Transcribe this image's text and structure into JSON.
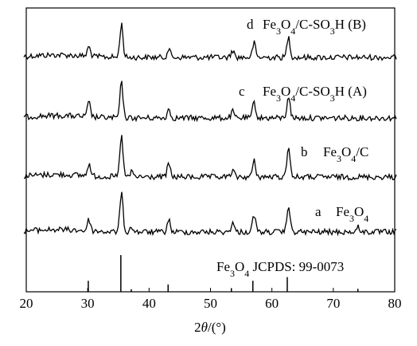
{
  "chart_data": {
    "type": "line",
    "xlabel": "2θ/(°)",
    "xlim": [
      20,
      80
    ],
    "xticks": [
      20,
      30,
      40,
      50,
      60,
      70,
      80
    ],
    "grid": false,
    "legend": "none",
    "series": [
      {
        "letter": "d",
        "label_html": "Fe<tspan baseline-shift=\"sub\" font-size=\"12\">3</tspan>O<tspan baseline-shift=\"sub\" font-size=\"12\">4</tspan>/C-SO<tspan baseline-shift=\"sub\" font-size=\"12\">3</tspan>H (B)",
        "peaks": [
          {
            "x": 30.2,
            "h": 12
          },
          {
            "x": 35.5,
            "h": 42
          },
          {
            "x": 43.2,
            "h": 11
          },
          {
            "x": 53.6,
            "h": 9
          },
          {
            "x": 57.1,
            "h": 18
          },
          {
            "x": 62.7,
            "h": 26
          }
        ]
      },
      {
        "letter": "c",
        "label_html": "Fe<tspan baseline-shift=\"sub\" font-size=\"12\">3</tspan>O<tspan baseline-shift=\"sub\" font-size=\"12\">4</tspan>/C-SO<tspan baseline-shift=\"sub\" font-size=\"12\">3</tspan>H (A)",
        "peaks": [
          {
            "x": 30.2,
            "h": 18
          },
          {
            "x": 35.5,
            "h": 44
          },
          {
            "x": 43.2,
            "h": 11
          },
          {
            "x": 53.6,
            "h": 8
          },
          {
            "x": 57.1,
            "h": 20
          },
          {
            "x": 62.7,
            "h": 28
          }
        ]
      },
      {
        "letter": "b",
        "label_html": "Fe<tspan baseline-shift=\"sub\" font-size=\"12\">3</tspan>O<tspan baseline-shift=\"sub\" font-size=\"12\">4</tspan>/C",
        "peaks": [
          {
            "x": 30.2,
            "h": 15
          },
          {
            "x": 35.5,
            "h": 52
          },
          {
            "x": 37.2,
            "h": 6
          },
          {
            "x": 43.2,
            "h": 17
          },
          {
            "x": 53.6,
            "h": 8
          },
          {
            "x": 57.1,
            "h": 20
          },
          {
            "x": 62.7,
            "h": 40
          }
        ]
      },
      {
        "letter": "a",
        "label_html": "Fe<tspan baseline-shift=\"sub\" font-size=\"12\">3</tspan>O<tspan baseline-shift=\"sub\" font-size=\"12\">4</tspan>",
        "peaks": [
          {
            "x": 30.2,
            "h": 14
          },
          {
            "x": 35.5,
            "h": 50
          },
          {
            "x": 37.2,
            "h": 6
          },
          {
            "x": 43.2,
            "h": 15
          },
          {
            "x": 53.6,
            "h": 12
          },
          {
            "x": 57.1,
            "h": 22
          },
          {
            "x": 62.7,
            "h": 34
          },
          {
            "x": 74.1,
            "h": 6
          }
        ]
      }
    ],
    "reference": {
      "label_html": "Fe<tspan baseline-shift=\"sub\" font-size=\"12\">3</tspan>O<tspan baseline-shift=\"sub\" font-size=\"12\">4</tspan>  JCPDS:  99-0073",
      "lines": [
        {
          "x": 30.1,
          "h": 0.3
        },
        {
          "x": 35.4,
          "h": 1.0
        },
        {
          "x": 37.1,
          "h": 0.07
        },
        {
          "x": 43.1,
          "h": 0.2
        },
        {
          "x": 53.4,
          "h": 0.1
        },
        {
          "x": 56.9,
          "h": 0.3
        },
        {
          "x": 62.5,
          "h": 0.4
        },
        {
          "x": 74.0,
          "h": 0.08
        }
      ]
    }
  }
}
